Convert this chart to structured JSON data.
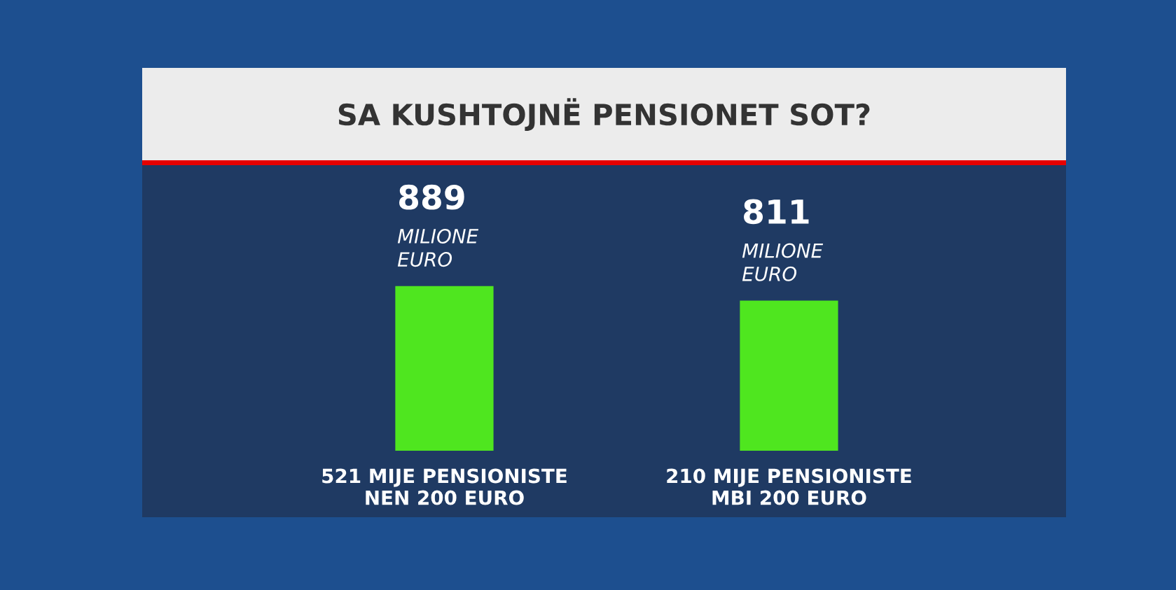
{
  "chart_data": {
    "type": "bar",
    "title": "SA KUSHTOJNË PENSIONET SOT?",
    "categories": [
      "521 MIJE PENSIONISTE\nNEN 200 EURO",
      "210 MIJE PENSIONISTE\nMBI 200 EURO"
    ],
    "values": [
      889,
      811
    ],
    "color": "#4fe61f",
    "value_labels": [
      "889",
      "811"
    ],
    "annotations": [
      "MILIONE\nEURO",
      "MILIONE\nEURO"
    ]
  }
}
